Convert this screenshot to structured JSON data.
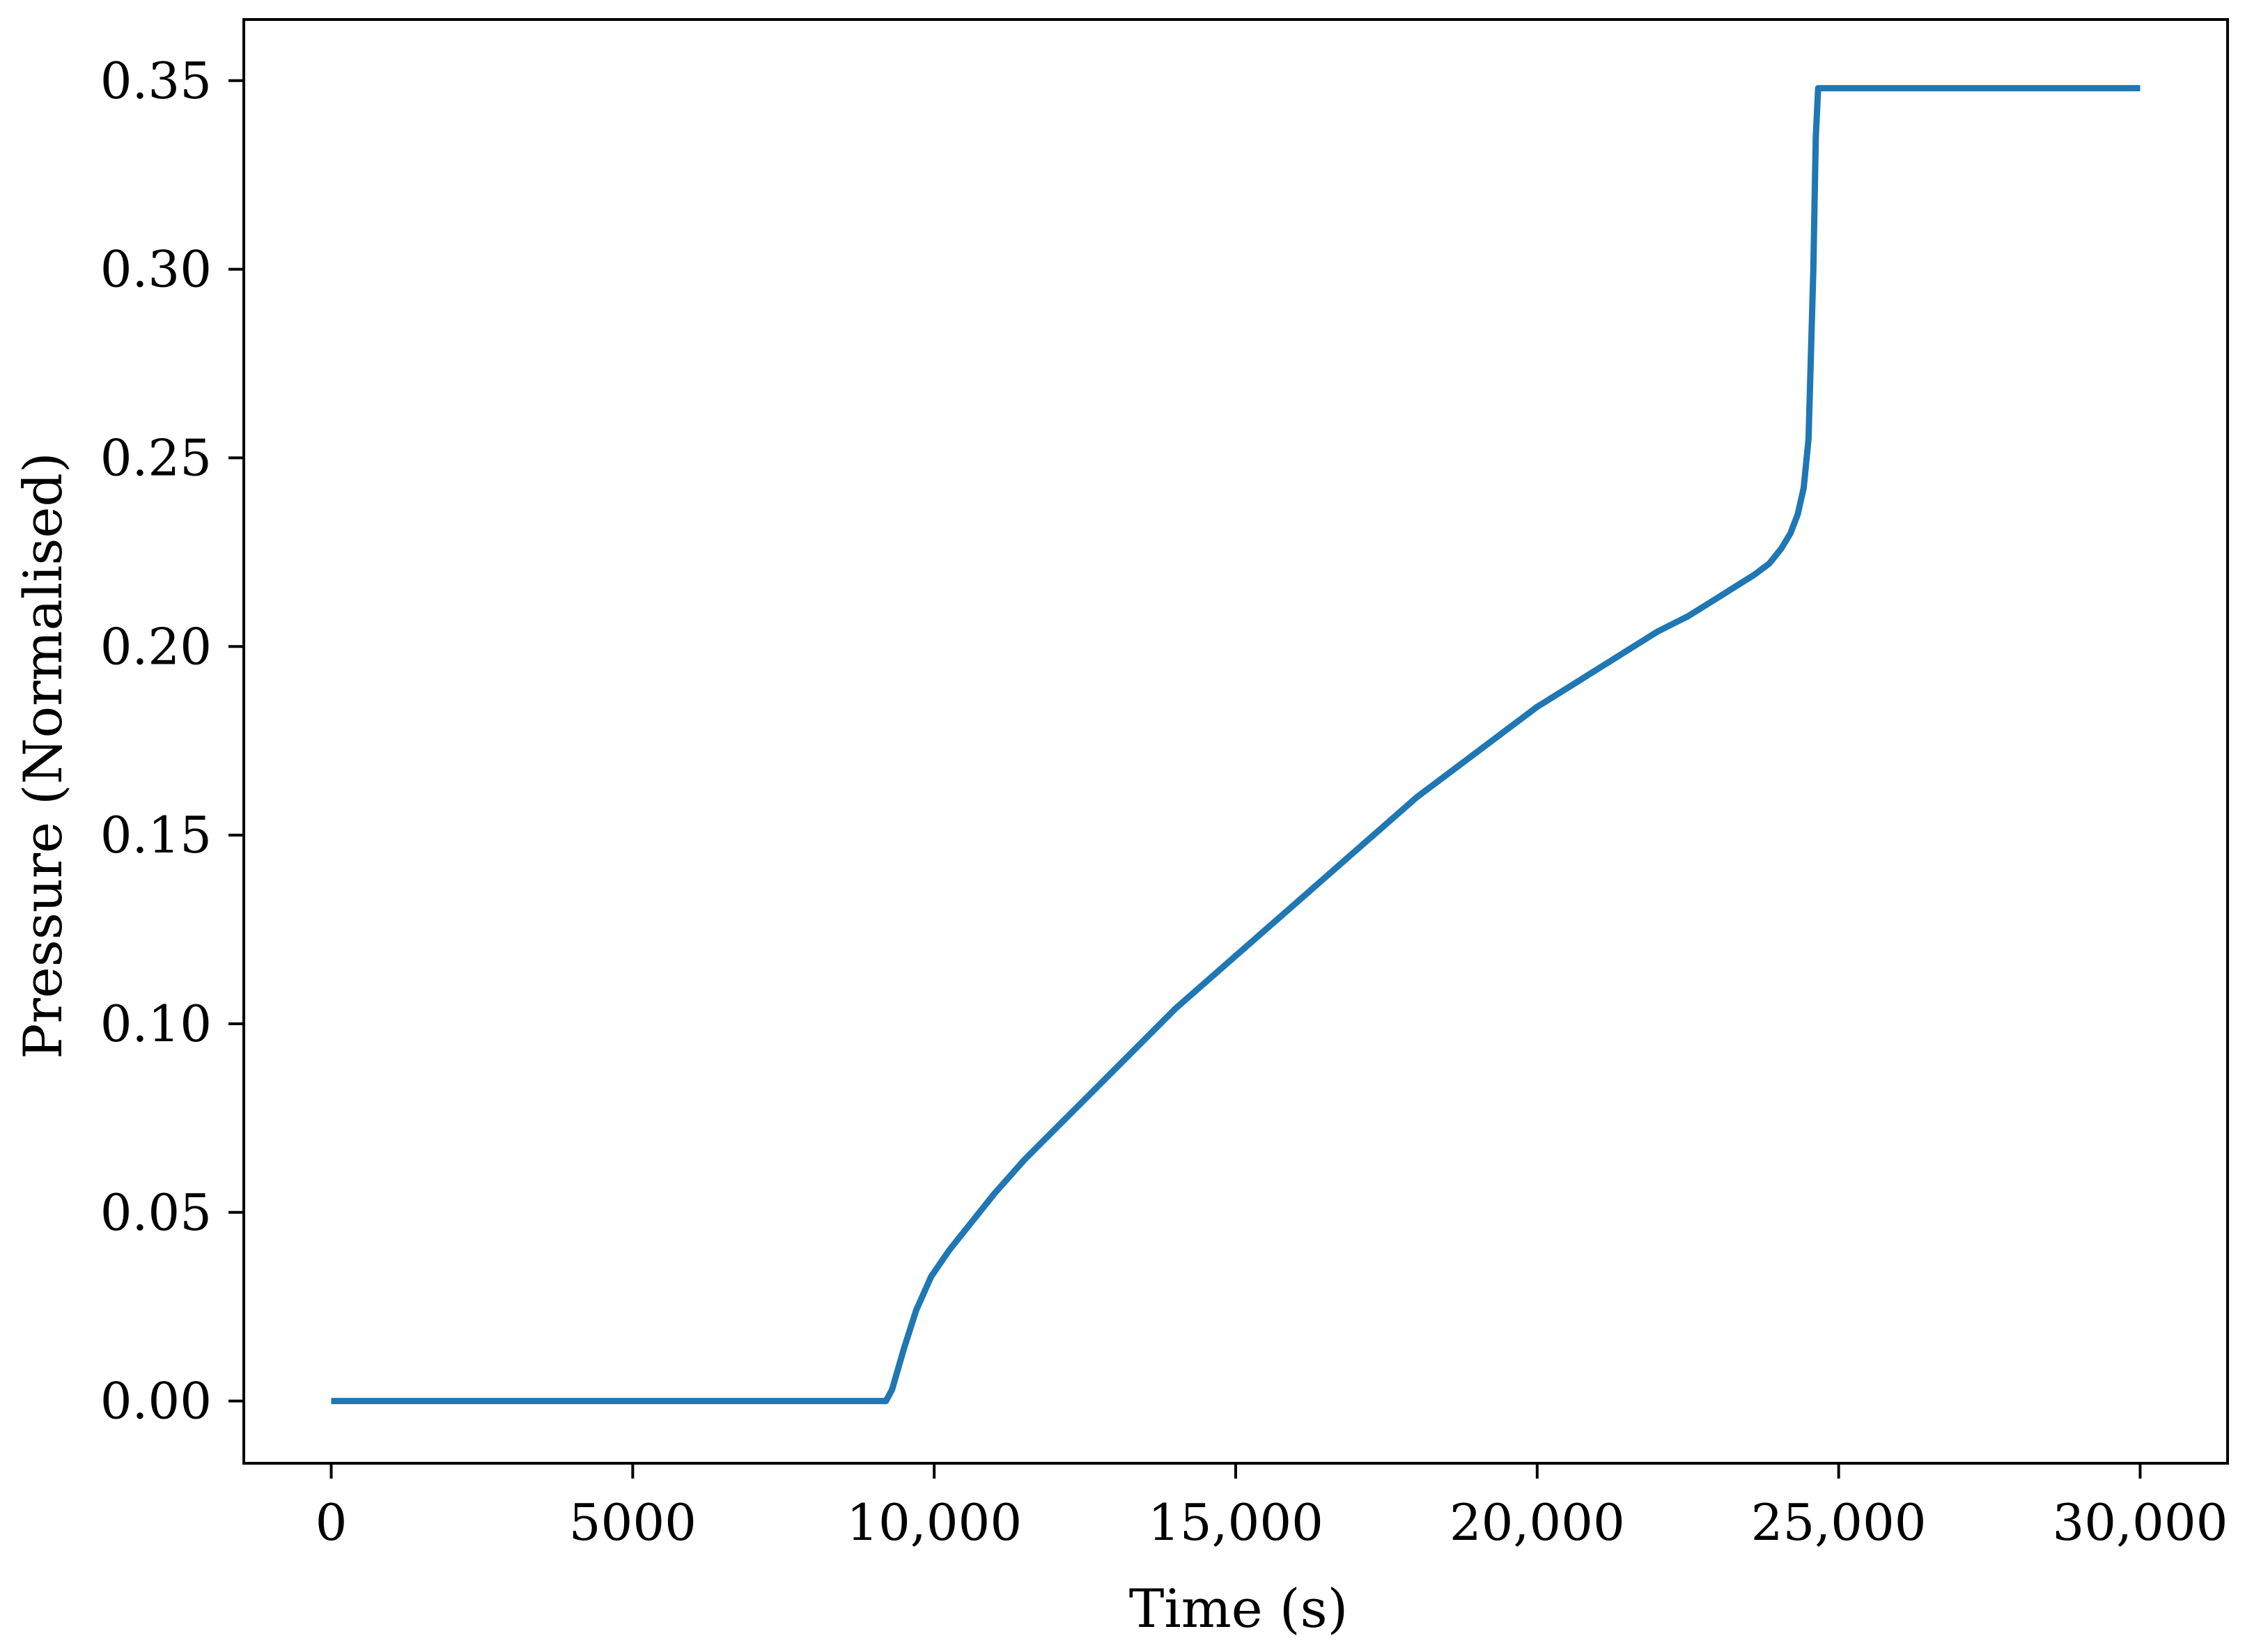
{
  "chart_data": {
    "type": "line",
    "title": "",
    "xlabel": "Time (s)",
    "ylabel": "Pressure (Normalised)",
    "xlim": [
      -1450,
      31450
    ],
    "ylim": [
      -0.0165,
      0.3662
    ],
    "x_ticks": [
      0,
      5000,
      10000,
      15000,
      20000,
      25000,
      30000
    ],
    "x_tick_labels": [
      "0",
      "5000",
      "10,000",
      "15,000",
      "20,000",
      "25,000",
      "30,000"
    ],
    "y_ticks": [
      0.0,
      0.05,
      0.1,
      0.15,
      0.2,
      0.25,
      0.3,
      0.35
    ],
    "y_tick_labels": [
      "0.00",
      "0.05",
      "0.10",
      "0.15",
      "0.20",
      "0.25",
      "0.30",
      "0.35"
    ],
    "grid": false,
    "legend": null,
    "series": [
      {
        "color": "#1f77b4",
        "x": [
          0,
          9200,
          9300,
          9500,
          9700,
          9950,
          10250,
          10600,
          11000,
          11500,
          12000,
          12500,
          13000,
          13500,
          14000,
          14500,
          15000,
          15500,
          16000,
          16500,
          17000,
          17500,
          18000,
          18500,
          19000,
          19500,
          20000,
          20500,
          21000,
          21500,
          22000,
          22500,
          23000,
          23300,
          23600,
          23850,
          24050,
          24200,
          24320,
          24420,
          24500,
          24580,
          24620,
          24660,
          30000
        ],
        "y": [
          0.0,
          0.0,
          0.003,
          0.014,
          0.024,
          0.033,
          0.04,
          0.047,
          0.055,
          0.064,
          0.072,
          0.08,
          0.088,
          0.096,
          0.104,
          0.111,
          0.118,
          0.125,
          0.132,
          0.139,
          0.146,
          0.153,
          0.16,
          0.166,
          0.172,
          0.178,
          0.184,
          0.189,
          0.194,
          0.199,
          0.204,
          0.208,
          0.213,
          0.216,
          0.219,
          0.222,
          0.226,
          0.23,
          0.235,
          0.242,
          0.255,
          0.3,
          0.335,
          0.348,
          0.348
        ]
      }
    ]
  }
}
